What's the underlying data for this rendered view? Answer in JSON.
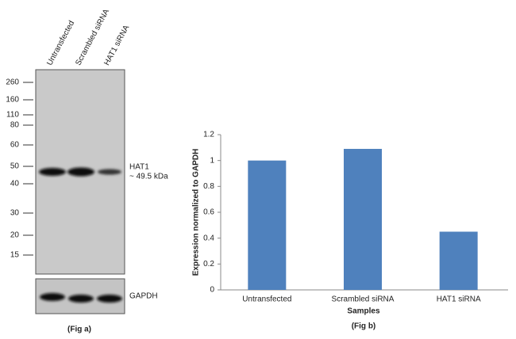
{
  "blot": {
    "lanes": [
      "Untransfected",
      "Scrambled siRNA",
      "HAT1 siRNA"
    ],
    "markers": [
      260,
      160,
      110,
      80,
      60,
      50,
      40,
      30,
      20,
      15
    ],
    "band_label": "HAT1",
    "band_size": "~ 49.5 kDa",
    "control_label": "GAPDH",
    "caption": "(Fig a)"
  },
  "chart_data": {
    "type": "bar",
    "caption": "(Fig b)",
    "x_label": "Samples",
    "y_label": "Expression  normalized to GAPDH",
    "categories": [
      "Untransfected",
      "Scrambled siRNA",
      "HAT1 siRNA"
    ],
    "values": [
      1.0,
      1.09,
      0.45
    ],
    "color": "#4f81bd",
    "ylim": [
      0,
      1.2
    ],
    "yticks": [
      0,
      0.2,
      0.4,
      0.6,
      0.8,
      1,
      1.2
    ]
  }
}
